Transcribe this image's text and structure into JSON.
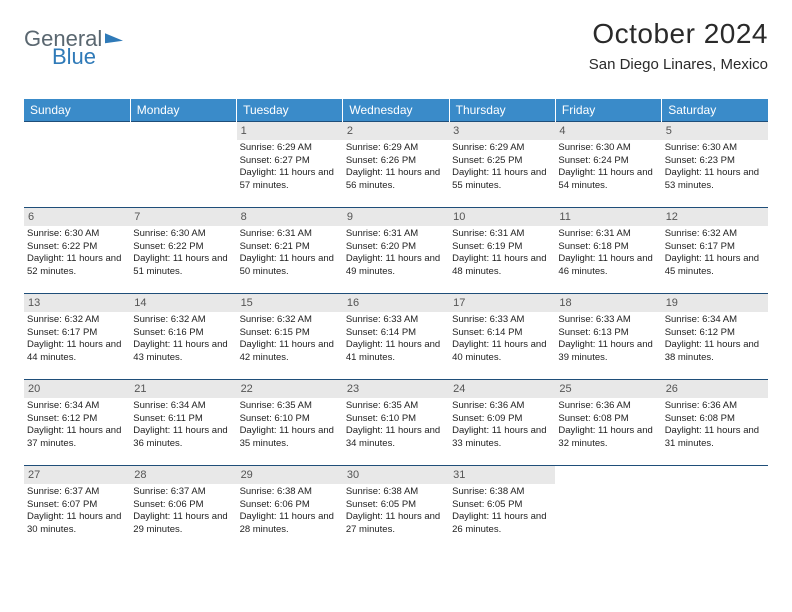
{
  "brand": {
    "part1": "General",
    "part2": "Blue"
  },
  "title": "October 2024",
  "location": "San Diego Linares, Mexico",
  "colors": {
    "header_bg": "#3a8bc9",
    "header_text": "#ffffff",
    "row_border": "#1f4e79",
    "daynum_bg": "#e8e8e8",
    "text": "#222222",
    "brand_grey": "#5a6770",
    "brand_blue": "#2f7ab8"
  },
  "days_of_week": [
    "Sunday",
    "Monday",
    "Tuesday",
    "Wednesday",
    "Thursday",
    "Friday",
    "Saturday"
  ],
  "weeks": [
    [
      {
        "n": "",
        "sr": "",
        "ss": "",
        "dl": ""
      },
      {
        "n": "",
        "sr": "",
        "ss": "",
        "dl": ""
      },
      {
        "n": "1",
        "sr": "Sunrise: 6:29 AM",
        "ss": "Sunset: 6:27 PM",
        "dl": "Daylight: 11 hours and 57 minutes."
      },
      {
        "n": "2",
        "sr": "Sunrise: 6:29 AM",
        "ss": "Sunset: 6:26 PM",
        "dl": "Daylight: 11 hours and 56 minutes."
      },
      {
        "n": "3",
        "sr": "Sunrise: 6:29 AM",
        "ss": "Sunset: 6:25 PM",
        "dl": "Daylight: 11 hours and 55 minutes."
      },
      {
        "n": "4",
        "sr": "Sunrise: 6:30 AM",
        "ss": "Sunset: 6:24 PM",
        "dl": "Daylight: 11 hours and 54 minutes."
      },
      {
        "n": "5",
        "sr": "Sunrise: 6:30 AM",
        "ss": "Sunset: 6:23 PM",
        "dl": "Daylight: 11 hours and 53 minutes."
      }
    ],
    [
      {
        "n": "6",
        "sr": "Sunrise: 6:30 AM",
        "ss": "Sunset: 6:22 PM",
        "dl": "Daylight: 11 hours and 52 minutes."
      },
      {
        "n": "7",
        "sr": "Sunrise: 6:30 AM",
        "ss": "Sunset: 6:22 PM",
        "dl": "Daylight: 11 hours and 51 minutes."
      },
      {
        "n": "8",
        "sr": "Sunrise: 6:31 AM",
        "ss": "Sunset: 6:21 PM",
        "dl": "Daylight: 11 hours and 50 minutes."
      },
      {
        "n": "9",
        "sr": "Sunrise: 6:31 AM",
        "ss": "Sunset: 6:20 PM",
        "dl": "Daylight: 11 hours and 49 minutes."
      },
      {
        "n": "10",
        "sr": "Sunrise: 6:31 AM",
        "ss": "Sunset: 6:19 PM",
        "dl": "Daylight: 11 hours and 48 minutes."
      },
      {
        "n": "11",
        "sr": "Sunrise: 6:31 AM",
        "ss": "Sunset: 6:18 PM",
        "dl": "Daylight: 11 hours and 46 minutes."
      },
      {
        "n": "12",
        "sr": "Sunrise: 6:32 AM",
        "ss": "Sunset: 6:17 PM",
        "dl": "Daylight: 11 hours and 45 minutes."
      }
    ],
    [
      {
        "n": "13",
        "sr": "Sunrise: 6:32 AM",
        "ss": "Sunset: 6:17 PM",
        "dl": "Daylight: 11 hours and 44 minutes."
      },
      {
        "n": "14",
        "sr": "Sunrise: 6:32 AM",
        "ss": "Sunset: 6:16 PM",
        "dl": "Daylight: 11 hours and 43 minutes."
      },
      {
        "n": "15",
        "sr": "Sunrise: 6:32 AM",
        "ss": "Sunset: 6:15 PM",
        "dl": "Daylight: 11 hours and 42 minutes."
      },
      {
        "n": "16",
        "sr": "Sunrise: 6:33 AM",
        "ss": "Sunset: 6:14 PM",
        "dl": "Daylight: 11 hours and 41 minutes."
      },
      {
        "n": "17",
        "sr": "Sunrise: 6:33 AM",
        "ss": "Sunset: 6:14 PM",
        "dl": "Daylight: 11 hours and 40 minutes."
      },
      {
        "n": "18",
        "sr": "Sunrise: 6:33 AM",
        "ss": "Sunset: 6:13 PM",
        "dl": "Daylight: 11 hours and 39 minutes."
      },
      {
        "n": "19",
        "sr": "Sunrise: 6:34 AM",
        "ss": "Sunset: 6:12 PM",
        "dl": "Daylight: 11 hours and 38 minutes."
      }
    ],
    [
      {
        "n": "20",
        "sr": "Sunrise: 6:34 AM",
        "ss": "Sunset: 6:12 PM",
        "dl": "Daylight: 11 hours and 37 minutes."
      },
      {
        "n": "21",
        "sr": "Sunrise: 6:34 AM",
        "ss": "Sunset: 6:11 PM",
        "dl": "Daylight: 11 hours and 36 minutes."
      },
      {
        "n": "22",
        "sr": "Sunrise: 6:35 AM",
        "ss": "Sunset: 6:10 PM",
        "dl": "Daylight: 11 hours and 35 minutes."
      },
      {
        "n": "23",
        "sr": "Sunrise: 6:35 AM",
        "ss": "Sunset: 6:10 PM",
        "dl": "Daylight: 11 hours and 34 minutes."
      },
      {
        "n": "24",
        "sr": "Sunrise: 6:36 AM",
        "ss": "Sunset: 6:09 PM",
        "dl": "Daylight: 11 hours and 33 minutes."
      },
      {
        "n": "25",
        "sr": "Sunrise: 6:36 AM",
        "ss": "Sunset: 6:08 PM",
        "dl": "Daylight: 11 hours and 32 minutes."
      },
      {
        "n": "26",
        "sr": "Sunrise: 6:36 AM",
        "ss": "Sunset: 6:08 PM",
        "dl": "Daylight: 11 hours and 31 minutes."
      }
    ],
    [
      {
        "n": "27",
        "sr": "Sunrise: 6:37 AM",
        "ss": "Sunset: 6:07 PM",
        "dl": "Daylight: 11 hours and 30 minutes."
      },
      {
        "n": "28",
        "sr": "Sunrise: 6:37 AM",
        "ss": "Sunset: 6:06 PM",
        "dl": "Daylight: 11 hours and 29 minutes."
      },
      {
        "n": "29",
        "sr": "Sunrise: 6:38 AM",
        "ss": "Sunset: 6:06 PM",
        "dl": "Daylight: 11 hours and 28 minutes."
      },
      {
        "n": "30",
        "sr": "Sunrise: 6:38 AM",
        "ss": "Sunset: 6:05 PM",
        "dl": "Daylight: 11 hours and 27 minutes."
      },
      {
        "n": "31",
        "sr": "Sunrise: 6:38 AM",
        "ss": "Sunset: 6:05 PM",
        "dl": "Daylight: 11 hours and 26 minutes."
      },
      {
        "n": "",
        "sr": "",
        "ss": "",
        "dl": ""
      },
      {
        "n": "",
        "sr": "",
        "ss": "",
        "dl": ""
      }
    ]
  ]
}
